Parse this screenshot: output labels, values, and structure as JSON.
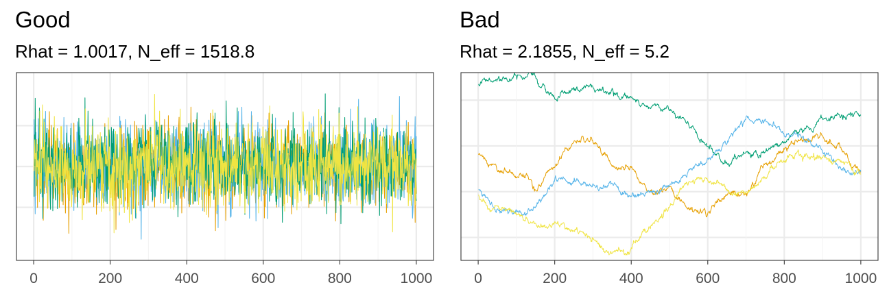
{
  "chart_data": [
    {
      "type": "line",
      "title": "Good",
      "subtitle": "Rhat = 1.0017, N_eff = 1518.8",
      "xlabel": "",
      "ylabel": "",
      "xlim": [
        -45,
        1045
      ],
      "ylim": [
        -4.6,
        4.6
      ],
      "x_ticks": [
        0,
        200,
        400,
        600,
        800,
        1000
      ],
      "x_tick_labels": [
        "0",
        "200",
        "400",
        "600",
        "800",
        "1000"
      ],
      "y_gridlines": [
        -2,
        0,
        2
      ],
      "y_tick_labels_shown": false,
      "grid": true,
      "legend": "none",
      "n_iterations": 1000,
      "series": [
        {
          "color": "#E69F00",
          "behavior": "white noise",
          "mean": 0.0,
          "sd": 1.0
        },
        {
          "color": "#56B4E9",
          "behavior": "white noise",
          "mean": 0.0,
          "sd": 1.0
        },
        {
          "color": "#009E73",
          "behavior": "white noise",
          "mean": 0.1,
          "sd": 1.05
        },
        {
          "color": "#F0E442",
          "behavior": "white noise",
          "mean": 0.0,
          "sd": 1.0
        }
      ]
    },
    {
      "type": "line",
      "title": "Bad",
      "subtitle": "Rhat = 2.1855, N_eff = 5.2",
      "xlabel": "",
      "ylabel": "",
      "xlim": [
        -45,
        1045
      ],
      "ylim": [
        -0.75,
        1.3
      ],
      "x_ticks": [
        0,
        200,
        400,
        600,
        800,
        1000
      ],
      "x_tick_labels": [
        "0",
        "200",
        "400",
        "600",
        "800",
        "1000"
      ],
      "y_gridlines": [
        -0.5,
        0,
        0.5,
        1
      ],
      "y_tick_labels_shown": false,
      "grid": true,
      "legend": "none",
      "n_iterations": 1000,
      "series": [
        {
          "color": "#009E73",
          "behavior": "random walk",
          "x": [
            0,
            50,
            100,
            150,
            200,
            250,
            300,
            350,
            400,
            450,
            500,
            550,
            600,
            650,
            700,
            750,
            800,
            850,
            900,
            950,
            1000
          ],
          "y": [
            1.18,
            1.2,
            1.22,
            1.2,
            1.05,
            1.12,
            1.1,
            1.05,
            1.05,
            0.95,
            0.9,
            0.75,
            0.5,
            0.3,
            0.4,
            0.45,
            0.55,
            0.65,
            0.75,
            0.85,
            0.85
          ]
        },
        {
          "color": "#E69F00",
          "behavior": "random walk",
          "x": [
            0,
            50,
            100,
            150,
            200,
            250,
            300,
            350,
            400,
            450,
            500,
            550,
            600,
            650,
            700,
            750,
            800,
            850,
            900,
            950,
            1000
          ],
          "y": [
            0.4,
            0.25,
            0.18,
            0.05,
            0.32,
            0.55,
            0.55,
            0.3,
            0.25,
            0.0,
            0.05,
            -0.15,
            -0.2,
            -0.05,
            0.0,
            0.3,
            0.45,
            0.55,
            0.6,
            0.45,
            0.25
          ]
        },
        {
          "color": "#56B4E9",
          "behavior": "random walk",
          "x": [
            0,
            50,
            100,
            150,
            200,
            250,
            300,
            350,
            400,
            450,
            500,
            550,
            600,
            650,
            700,
            750,
            800,
            850,
            900,
            950,
            1000
          ],
          "y": [
            0.0,
            -0.2,
            -0.25,
            -0.15,
            0.15,
            0.12,
            0.05,
            0.08,
            -0.05,
            -0.05,
            0.05,
            0.25,
            0.35,
            0.55,
            0.8,
            0.78,
            0.62,
            0.62,
            0.45,
            0.25,
            0.2
          ]
        },
        {
          "color": "#F0E442",
          "behavior": "random walk",
          "x": [
            0,
            50,
            100,
            150,
            200,
            250,
            300,
            350,
            400,
            450,
            500,
            550,
            600,
            650,
            700,
            750,
            800,
            850,
            900,
            950,
            1000
          ],
          "y": [
            -0.05,
            -0.18,
            -0.25,
            -0.38,
            -0.35,
            -0.38,
            -0.5,
            -0.68,
            -0.6,
            -0.35,
            -0.15,
            0.1,
            0.1,
            0.05,
            0.0,
            0.15,
            0.35,
            0.42,
            0.35,
            0.3,
            0.2
          ]
        }
      ]
    }
  ]
}
